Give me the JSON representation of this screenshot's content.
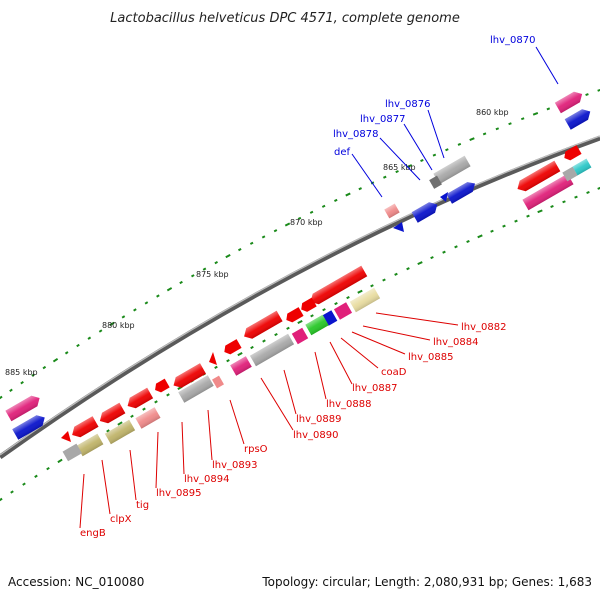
{
  "title": "Lactobacillus helveticus DPC 4571, complete genome",
  "footer": {
    "accession": "Accession: NC_010080",
    "summary": "Topology: circular; Length: 2,080,931 bp; Genes: 1,683"
  },
  "colors": {
    "backbone": "#7a7a7a",
    "tick": "#1a8a1a",
    "label_forward": "#0000dd",
    "label_reverse": "#dd0000",
    "gene_red": "#ee0000",
    "gene_pink": "#e0207a",
    "gene_blue": "#0a14cc",
    "gene_gray": "#a8a8a8",
    "gene_salmon": "#f08a8a",
    "gene_green": "#28c828",
    "gene_olive": "#c0b46a",
    "gene_cream": "#e8dca0",
    "gene_cyan": "#2cc8c8"
  },
  "kbp_markers": [
    "860 kbp",
    "865 kbp",
    "870 kbp",
    "875 kbp",
    "880 kbp",
    "885 kbp"
  ],
  "forward_labels": [
    "lhv_0870",
    "lhv_0876",
    "lhv_0877",
    "lhv_0878",
    "def"
  ],
  "reverse_labels": [
    "lhv_0882",
    "lhv_0884",
    "lhv_0885",
    "coaD",
    "lhv_0887",
    "lhv_0888",
    "lhv_0889",
    "lhv_0890",
    "rpsO",
    "lhv_0893",
    "lhv_0894",
    "lhv_0895",
    "tig",
    "clpX",
    "engB"
  ]
}
